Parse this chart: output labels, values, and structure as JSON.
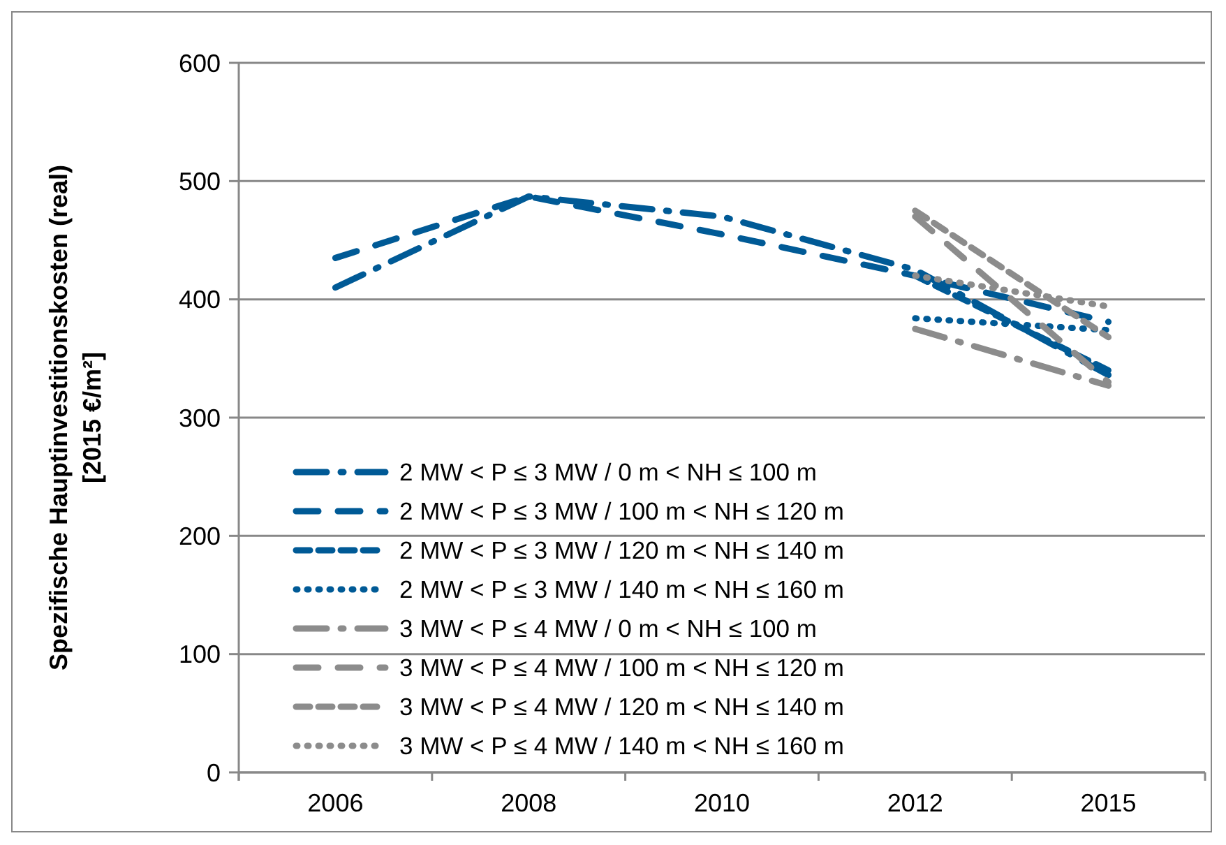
{
  "chart_data": {
    "type": "line",
    "ylabel": "Spezifische Hauptinvestitionskosten (real)\n[2015 €/m²]",
    "categories": [
      "2006",
      "2008",
      "2010",
      "2012",
      "2015"
    ],
    "ylim": [
      0,
      600
    ],
    "yticks": [
      0,
      100,
      200,
      300,
      400,
      500,
      600
    ],
    "grid": "y",
    "legend": "bottom left",
    "series": [
      {
        "name": "2 MW < P ≤ 3 MW / 0 m < NH ≤ 100 m",
        "color": "#005a96",
        "line_style": "dashdot",
        "values": [
          410,
          487,
          470,
          425,
          336
        ]
      },
      {
        "name": "2 MW < P ≤ 3 MW / 100 m < NH ≤ 120 m",
        "color": "#005a96",
        "line_style": "longdash",
        "values": [
          435,
          487,
          455,
          420,
          381
        ]
      },
      {
        "name": "2 MW < P ≤ 3 MW / 120 m < NH ≤ 140 m",
        "color": "#005a96",
        "line_style": "dashed",
        "values": [
          null,
          null,
          null,
          420,
          340
        ]
      },
      {
        "name": "2 MW < P ≤ 3 MW / 140 m < NH ≤ 160 m",
        "color": "#005a96",
        "line_style": "dotted",
        "values": [
          null,
          null,
          null,
          384,
          374
        ]
      },
      {
        "name": "3 MW < P ≤ 4 MW / 0 m < NH ≤ 100 m",
        "color": "#8c8c8c",
        "line_style": "dashdot",
        "values": [
          null,
          null,
          null,
          375,
          327
        ]
      },
      {
        "name": "3 MW < P ≤ 4 MW / 100 m < NH ≤ 120 m",
        "color": "#8c8c8c",
        "line_style": "longdash",
        "values": [
          null,
          null,
          null,
          470,
          330
        ]
      },
      {
        "name": "3 MW < P ≤ 4 MW / 120 m < NH ≤ 140 m",
        "color": "#8c8c8c",
        "line_style": "dashed",
        "values": [
          null,
          null,
          null,
          475,
          368
        ]
      },
      {
        "name": "3 MW < P ≤ 4 MW / 140 m < NH ≤ 160 m",
        "color": "#8c8c8c",
        "line_style": "dotted",
        "values": [
          null,
          null,
          null,
          420,
          394
        ]
      }
    ]
  }
}
